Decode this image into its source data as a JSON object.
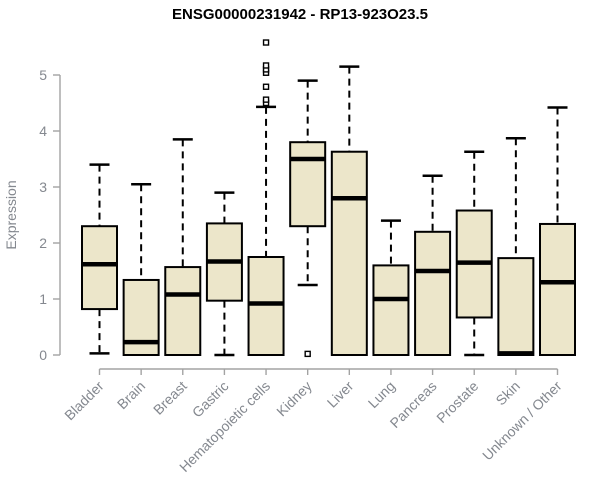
{
  "title": "ENSG00000231942 - RP13-923O23.5",
  "chart_data": {
    "type": "boxplot",
    "title": "ENSG00000231942 - RP13-923O23.5",
    "xlabel": "",
    "ylabel": "Expression",
    "ylim": [
      0,
      5
    ],
    "ytick_labels": [
      "0",
      "1",
      "2",
      "3",
      "4",
      "5"
    ],
    "yticks": [
      0,
      1,
      2,
      3,
      4,
      5
    ],
    "grid": "off",
    "legend": "none",
    "categories": [
      "Bladder",
      "Brain",
      "Breast",
      "Gastric",
      "Hematopoietic cells",
      "Kidney",
      "Liver",
      "Lung",
      "Pancreas",
      "Prostate",
      "Skin",
      "Unknown / Other"
    ],
    "series": [
      {
        "name": "Bladder",
        "whisker_low": 0.03,
        "q1": 0.82,
        "median": 1.62,
        "q3": 2.3,
        "whisker_high": 3.4,
        "outliers": []
      },
      {
        "name": "Brain",
        "whisker_low": 0.0,
        "q1": 0.0,
        "median": 0.23,
        "q3": 1.34,
        "whisker_high": 3.05,
        "outliers": []
      },
      {
        "name": "Breast",
        "whisker_low": 0.0,
        "q1": 0.0,
        "median": 1.08,
        "q3": 1.57,
        "whisker_high": 3.85,
        "outliers": []
      },
      {
        "name": "Gastric",
        "whisker_low": 0.0,
        "q1": 0.97,
        "median": 1.67,
        "q3": 2.35,
        "whisker_high": 2.9,
        "outliers": []
      },
      {
        "name": "Hematopoietic cells",
        "whisker_low": 0.0,
        "q1": 0.0,
        "median": 0.92,
        "q3": 1.75,
        "whisker_high": 4.43,
        "outliers": [
          4.5,
          4.56,
          4.79,
          5.04,
          5.1,
          5.17,
          5.58
        ]
      },
      {
        "name": "Kidney",
        "whisker_low": 1.25,
        "q1": 2.3,
        "median": 3.5,
        "q3": 3.8,
        "whisker_high": 4.9,
        "outliers": [
          0.02
        ]
      },
      {
        "name": "Liver",
        "whisker_low": 0.0,
        "q1": 0.0,
        "median": 2.8,
        "q3": 3.63,
        "whisker_high": 5.15,
        "outliers": []
      },
      {
        "name": "Lung",
        "whisker_low": 0.0,
        "q1": 0.0,
        "median": 1.0,
        "q3": 1.6,
        "whisker_high": 2.4,
        "outliers": []
      },
      {
        "name": "Pancreas",
        "whisker_low": 0.0,
        "q1": 0.0,
        "median": 1.5,
        "q3": 2.2,
        "whisker_high": 3.2,
        "outliers": []
      },
      {
        "name": "Prostate",
        "whisker_low": 0.0,
        "q1": 0.67,
        "median": 1.65,
        "q3": 2.58,
        "whisker_high": 3.63,
        "outliers": []
      },
      {
        "name": "Skin",
        "whisker_low": 0.0,
        "q1": 0.0,
        "median": 0.03,
        "q3": 1.73,
        "whisker_high": 3.87,
        "outliers": []
      },
      {
        "name": "Unknown / Other",
        "whisker_low": 0.0,
        "q1": 0.0,
        "median": 1.3,
        "q3": 2.34,
        "whisker_high": 4.42,
        "outliers": []
      }
    ],
    "colors": {
      "box_fill": "#ECE6CA",
      "box_border": "#000000",
      "median": "#000000",
      "whisker": "#000000",
      "outlier": "#000000",
      "axis": "#a3a3a3",
      "tick_text": "#84888f",
      "title": "#000000",
      "background": "#ffffff"
    }
  }
}
